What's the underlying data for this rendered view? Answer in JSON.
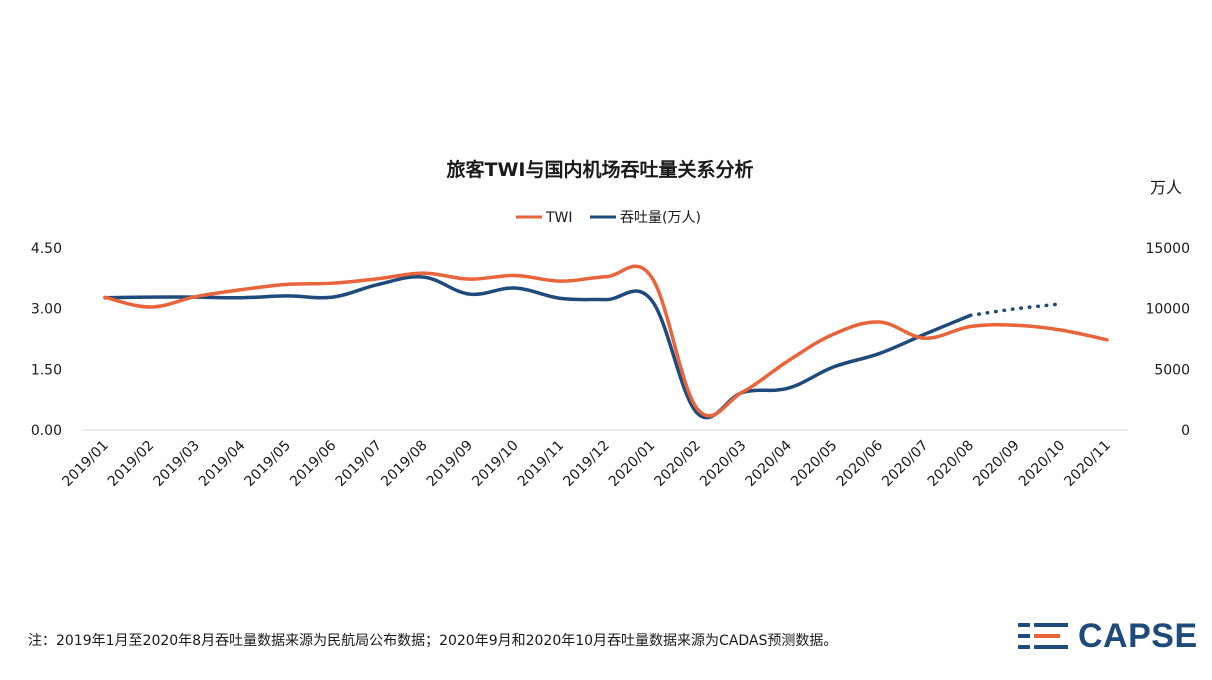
{
  "footnote": "注：2019年1月至2020年8月吞吐量数据来源为民航局公布数据；2020年9月和2020年10月吞吐量数据来源为CADAS预测数据。",
  "logo": {
    "text": "CAPSE"
  },
  "colors": {
    "twi": "#e8643a",
    "throughput": "#1f4a7c",
    "axis": "#d9d9d9"
  },
  "chart_data": {
    "type": "line",
    "title": "旅客TWI与国内机场吞吐量关系分析",
    "categories": [
      "2019/01",
      "2019/02",
      "2019/03",
      "2019/04",
      "2019/05",
      "2019/06",
      "2019/07",
      "2019/08",
      "2019/09",
      "2019/10",
      "2019/11",
      "2019/12",
      "2020/01",
      "2020/02",
      "2020/03",
      "2020/04",
      "2020/05",
      "2020/06",
      "2020/07",
      "2020/08",
      "2020/09",
      "2020/10",
      "2020/11"
    ],
    "left_axis": {
      "ylim": [
        0,
        4.5
      ],
      "ticks": [
        "0.00",
        "1.50",
        "3.00",
        "4.50"
      ]
    },
    "right_axis": {
      "label": "万人",
      "ylim": [
        0,
        15000
      ],
      "ticks": [
        "0",
        "5000",
        "10000",
        "15000"
      ]
    },
    "legend_position": "top",
    "grid": false,
    "series": [
      {
        "name": "TWI",
        "axis": "left",
        "values": [
          3.28,
          3.04,
          3.3,
          3.47,
          3.6,
          3.63,
          3.74,
          3.88,
          3.73,
          3.82,
          3.68,
          3.79,
          3.78,
          0.53,
          0.94,
          1.71,
          2.37,
          2.67,
          2.27,
          2.56,
          2.59,
          2.47,
          2.23
        ]
      },
      {
        "name": "吞吐量(万人)",
        "axis": "right",
        "values": [
          10900,
          10950,
          10950,
          10900,
          11050,
          10950,
          12000,
          12600,
          11200,
          11700,
          10850,
          10750,
          10700,
          1400,
          3100,
          3450,
          5200,
          6300,
          7900,
          9450,
          null,
          null,
          null
        ],
        "forecast": {
          "categories": [
            "2020/08",
            "2020/09",
            "2020/10"
          ],
          "values": [
            9450,
            10000,
            10400
          ]
        }
      }
    ]
  }
}
